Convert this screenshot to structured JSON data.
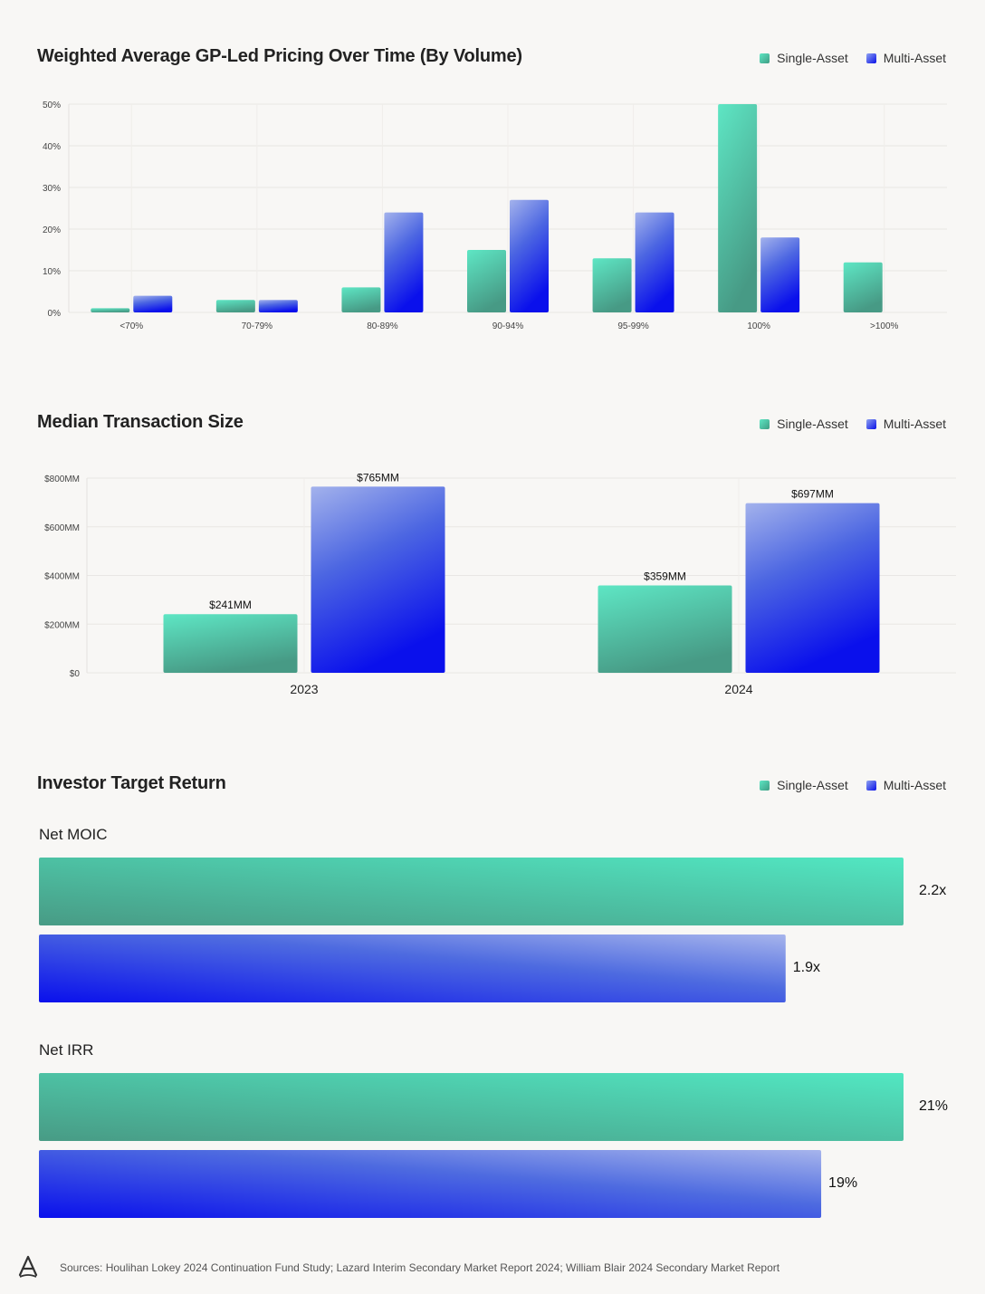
{
  "colors": {
    "single_light": "#5ee6c4",
    "single_dark": "#3e9d83",
    "multi_light": "#9fb0ee",
    "multi_dark": "#0a10e8",
    "grid": "#e8e6e3",
    "background": "#f8f7f5"
  },
  "legend": {
    "single": "Single-Asset",
    "multi": "Multi-Asset"
  },
  "chart_data": [
    {
      "type": "bar",
      "title": "Weighted Average GP-Led Pricing Over Time (By Volume)",
      "categories": [
        "<70%",
        "70-79%",
        "80-89%",
        "90-94%",
        "95-99%",
        "100%",
        ">100%"
      ],
      "series": [
        {
          "name": "Single-Asset",
          "values": [
            1,
            3,
            6,
            15,
            13,
            50,
            12
          ]
        },
        {
          "name": "Multi-Asset",
          "values": [
            4,
            3,
            24,
            27,
            24,
            18,
            0
          ]
        }
      ],
      "yticks": [
        "0%",
        "10%",
        "20%",
        "30%",
        "40%",
        "50%"
      ],
      "ylim": [
        0,
        50
      ],
      "grid": true,
      "legend": "top-right"
    },
    {
      "type": "bar",
      "title": "Median Transaction Size",
      "categories": [
        "2023",
        "2024"
      ],
      "series": [
        {
          "name": "Single-Asset",
          "values": [
            241,
            359
          ],
          "labels": [
            "$241MM",
            "$359MM"
          ]
        },
        {
          "name": "Multi-Asset",
          "values": [
            765,
            697
          ],
          "labels": [
            "$765MM",
            "$697MM"
          ]
        }
      ],
      "yticks": [
        "$0",
        "$200MM",
        "$400MM",
        "$600MM",
        "$800MM"
      ],
      "ylim": [
        0,
        800
      ],
      "grid": true,
      "legend": "top-right"
    },
    {
      "type": "bar",
      "orientation": "horizontal",
      "title": "Investor Target Return",
      "groups": [
        {
          "label": "Net MOIC",
          "series": [
            {
              "name": "Single-Asset",
              "value": 2.2,
              "label": "2.2x"
            },
            {
              "name": "Multi-Asset",
              "value": 1.9,
              "label": "1.9x"
            }
          ]
        },
        {
          "label": "Net IRR",
          "series": [
            {
              "name": "Single-Asset",
              "value": 21,
              "label": "21%"
            },
            {
              "name": "Multi-Asset",
              "value": 19,
              "label": "19%"
            }
          ]
        }
      ],
      "legend": "top-right"
    }
  ],
  "footer": {
    "sources": "Sources: Houlihan Lokey 2024 Continuation Fund Study; Lazard Interim Secondary Market Report 2024; William Blair 2024 Secondary Market Report"
  }
}
